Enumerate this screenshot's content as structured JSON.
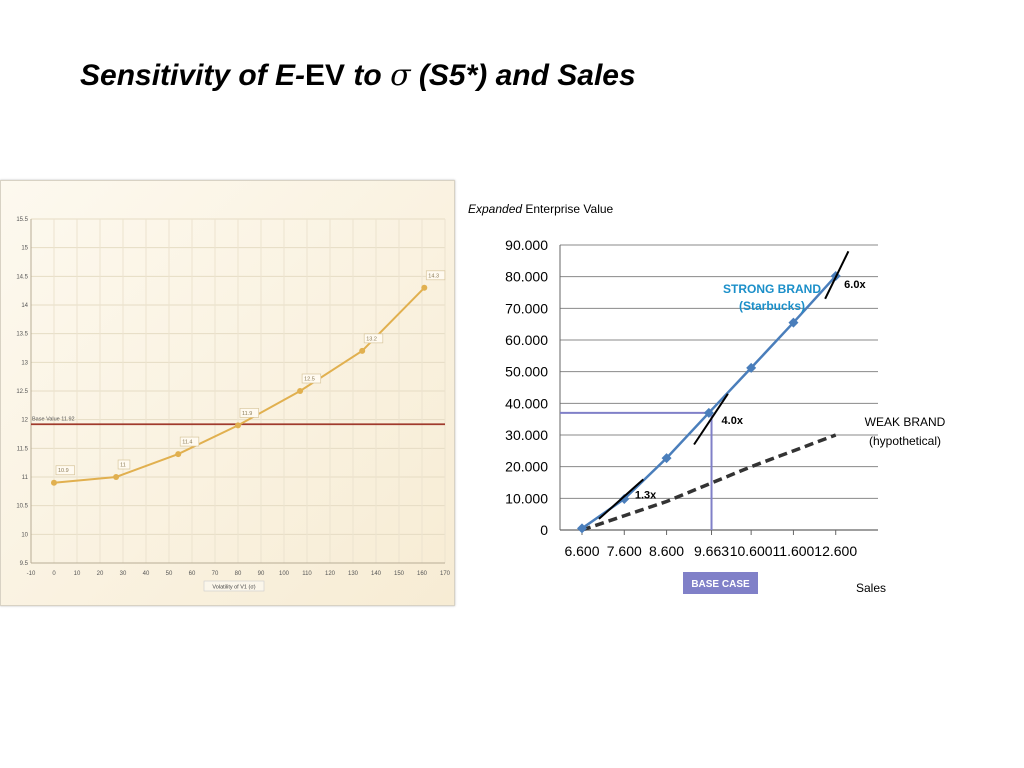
{
  "slide": {
    "title_a": "Sensitivity of ",
    "title_b": "E-",
    "title_c": "EV",
    "title_d": " to ",
    "title_sigma": "σ",
    "title_e": " (S5*) and Sales"
  },
  "chart_data": [
    {
      "type": "line",
      "xlabel": "Volatility of V1 (σ)",
      "ylabel": "",
      "xlim": [
        -10,
        170
      ],
      "ylim": [
        9.5,
        15.5
      ],
      "x_ticks": [
        "-10",
        "0",
        "10",
        "20",
        "30",
        "40",
        "50",
        "60",
        "70",
        "80",
        "90",
        "100",
        "110",
        "120",
        "130",
        "140",
        "150",
        "160",
        "170"
      ],
      "y_ticks": [
        "9.5",
        "10",
        "10.5",
        "11",
        "11.5",
        "12",
        "12.5",
        "13",
        "13.5",
        "14",
        "14.5",
        "15",
        "15.5"
      ],
      "grid": true,
      "series": [
        {
          "x": [
            0,
            27,
            54,
            80,
            107,
            134,
            161
          ],
          "y": [
            10.9,
            11.0,
            11.4,
            11.9,
            12.5,
            13.2,
            14.3
          ],
          "labels": [
            "10.9",
            "11",
            "11.4",
            "11.9",
            "12.5",
            "13.2",
            "14.3"
          ],
          "color": "#e1b04f"
        }
      ],
      "reference_line": {
        "value": 11.92,
        "label": "Base Value 11.92",
        "color": "#a03a2c"
      }
    },
    {
      "type": "line",
      "title_italic": "Expanded",
      "title_rest": " Enterprise Value",
      "xlabel": "Sales",
      "x_ticks": [
        "6.600",
        "7.600",
        "8.600",
        "9.663",
        "10.600",
        "11.600",
        "12.600"
      ],
      "y_ticks": [
        "0",
        "10.000",
        "20.000",
        "30.000",
        "40.000",
        "50.000",
        "60.000",
        "70.000",
        "80.000",
        "90.000"
      ],
      "xlim": [
        6.6,
        13.6
      ],
      "ylim": [
        0,
        90000
      ],
      "grid": true,
      "series": [
        {
          "name_line1": "STRONG BRAND",
          "name_line2": "(Starbucks)",
          "x": [
            6.6,
            7.6,
            8.6,
            9.6,
            10.6,
            11.6,
            12.6
          ],
          "y": [
            500,
            9800,
            22700,
            37000,
            51200,
            65500,
            80200
          ],
          "color": "#4a7ebb",
          "style": "solid"
        },
        {
          "name_line1": "WEAK BRAND",
          "name_line2": "(hypothetical)",
          "x": [
            6.6,
            7.6,
            8.6,
            9.6,
            10.6,
            11.6,
            12.6
          ],
          "y": [
            0,
            4500,
            9000,
            14500,
            20000,
            25000,
            30000
          ],
          "color": "#333333",
          "style": "dashed"
        }
      ],
      "slopes": [
        "1.3x",
        "4.0x",
        "6.0x"
      ],
      "base_case": {
        "label": "BASE CASE",
        "x": 9.663,
        "y": 37000,
        "color": "#8080c8"
      }
    }
  ]
}
